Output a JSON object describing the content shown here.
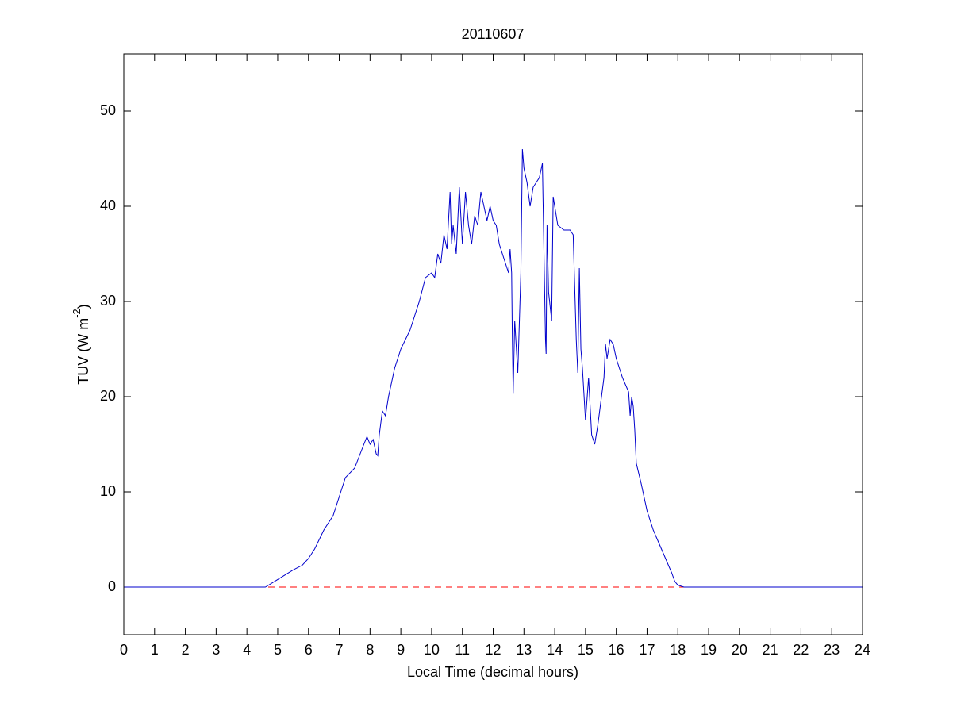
{
  "chart_data": {
    "type": "line",
    "title": "20110607",
    "xlabel": "Local Time (decimal hours)",
    "ylabel": [
      "TUV (W m",
      "-2",
      ")"
    ],
    "xlim": [
      0,
      24
    ],
    "ylim": [
      -5,
      56
    ],
    "xticks": [
      0,
      1,
      2,
      3,
      4,
      5,
      6,
      7,
      8,
      9,
      10,
      11,
      12,
      13,
      14,
      15,
      16,
      17,
      18,
      19,
      20,
      21,
      22,
      23,
      24
    ],
    "yticks": [
      0,
      10,
      20,
      30,
      40,
      50
    ],
    "reference_line": {
      "value": 0,
      "color": "#ff0000"
    },
    "series": [
      {
        "color": "#0000cc",
        "x": [
          0,
          4.6,
          5.0,
          5.5,
          5.8,
          6.0,
          6.2,
          6.5,
          6.8,
          7.0,
          7.2,
          7.5,
          7.8,
          7.9,
          8.0,
          8.1,
          8.2,
          8.25,
          8.3,
          8.4,
          8.5,
          8.6,
          8.8,
          9.0,
          9.3,
          9.6,
          9.8,
          10.0,
          10.1,
          10.2,
          10.3,
          10.4,
          10.5,
          10.6,
          10.65,
          10.7,
          10.8,
          10.9,
          11.0,
          11.1,
          11.2,
          11.3,
          11.4,
          11.5,
          11.6,
          11.7,
          11.8,
          11.9,
          12.0,
          12.1,
          12.2,
          12.3,
          12.4,
          12.5,
          12.55,
          12.6,
          12.62,
          12.65,
          12.7,
          12.8,
          12.9,
          12.95,
          13.0,
          13.1,
          13.2,
          13.3,
          13.4,
          13.5,
          13.6,
          13.7,
          13.72,
          13.75,
          13.8,
          13.9,
          13.95,
          14.0,
          14.1,
          14.3,
          14.5,
          14.6,
          14.7,
          14.75,
          14.8,
          14.85,
          14.9,
          15.0,
          15.1,
          15.2,
          15.3,
          15.4,
          15.5,
          15.6,
          15.65,
          15.7,
          15.8,
          15.9,
          16.0,
          16.2,
          16.4,
          16.45,
          16.5,
          16.55,
          16.6,
          16.65,
          16.8,
          17.0,
          17.2,
          17.4,
          17.6,
          17.8,
          17.9,
          18.0,
          18.2,
          24
        ],
        "values": [
          0,
          0,
          0.8,
          1.8,
          2.3,
          3,
          4,
          6,
          7.5,
          9.5,
          11.5,
          12.5,
          15,
          15.8,
          15,
          15.5,
          14,
          13.8,
          16,
          18.5,
          18,
          20,
          23,
          25,
          27,
          30,
          32.5,
          33,
          32.5,
          35,
          34,
          37,
          35.5,
          41.5,
          36,
          38,
          35,
          42,
          36,
          41.5,
          38,
          36,
          39,
          38,
          41.5,
          40,
          38.5,
          40,
          38.5,
          38,
          36,
          35,
          34,
          33,
          35.5,
          33,
          27,
          20.3,
          28,
          22.5,
          33,
          46,
          44,
          42.5,
          40,
          42,
          42.5,
          43,
          44.5,
          26,
          24.5,
          38,
          31,
          28,
          41,
          40,
          38,
          37.5,
          37.5,
          37,
          26,
          22.5,
          33.5,
          25,
          23,
          17.5,
          22,
          16,
          15,
          17,
          19.5,
          22,
          25.5,
          24,
          26,
          25.5,
          24,
          22,
          20.5,
          18,
          20,
          19,
          16.5,
          13,
          11,
          8,
          6,
          4.5,
          3,
          1.5,
          0.6,
          0.2,
          0,
          0
        ]
      }
    ]
  }
}
